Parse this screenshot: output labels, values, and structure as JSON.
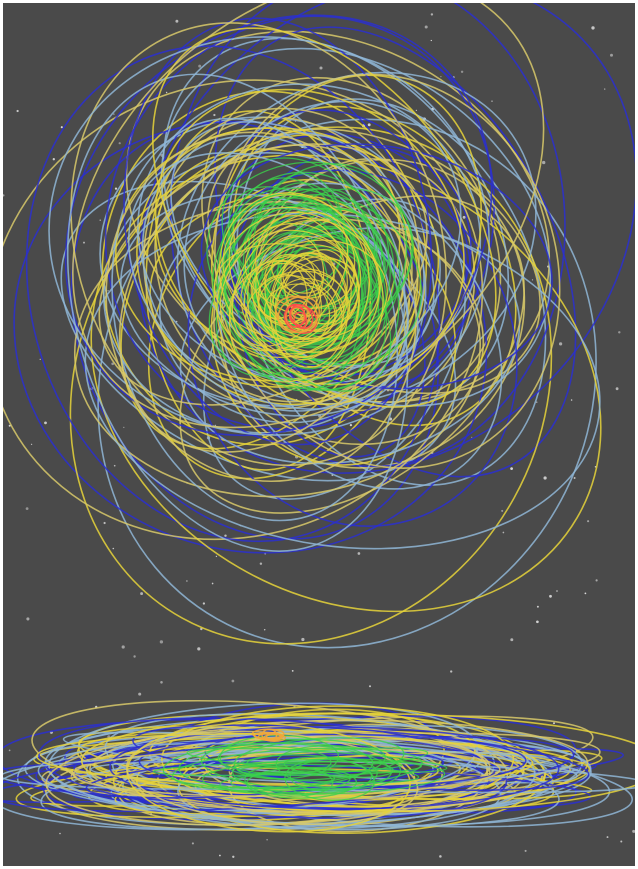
{
  "image": {
    "description_free": true,
    "background_color": "#4a4a4a",
    "border_color": "#ffffff",
    "star_color": "#d8d8d8",
    "orbit_palette": {
      "dark_blue": "#2a2fd0",
      "light_blue": "#8fb6d6",
      "yellow": "#e6d33a",
      "pale_yellow": "#d8c96a",
      "green": "#3bd24a",
      "red": "#ff4a4a",
      "orange": "#f0a63a"
    }
  }
}
